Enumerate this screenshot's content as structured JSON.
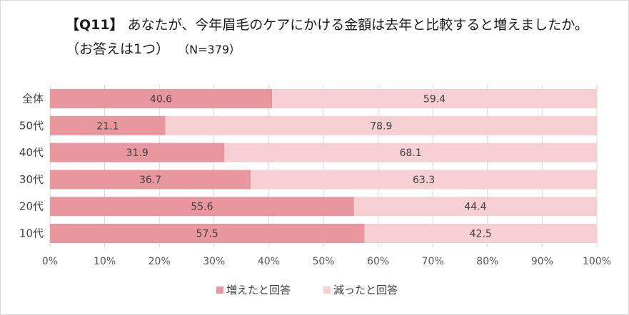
{
  "title": {
    "prefix": "【Q11】",
    "text": "あなたが、今年眉毛のケアにかける金額は去年と比較すると増えましたか。（お答えは1つ）",
    "sample": "（N=379）"
  },
  "chart_data": {
    "type": "bar",
    "orientation": "horizontal",
    "stacked": true,
    "percent": true,
    "categories": [
      "全体",
      "50代",
      "40代",
      "30代",
      "20代",
      "10代"
    ],
    "series": [
      {
        "name": "増えたと回答",
        "values": [
          40.6,
          21.1,
          31.9,
          36.7,
          55.6,
          57.5
        ],
        "color": "#e8979e"
      },
      {
        "name": "減ったと回答",
        "values": [
          59.4,
          78.9,
          68.1,
          63.3,
          44.4,
          42.5
        ],
        "color": "#f5cfd1"
      }
    ],
    "xlim": [
      0,
      100
    ],
    "xticks": [
      "0%",
      "10%",
      "20%",
      "30%",
      "40%",
      "50%",
      "60%",
      "70%",
      "80%",
      "90%",
      "100%"
    ],
    "grid": true,
    "legend": "bottom"
  }
}
